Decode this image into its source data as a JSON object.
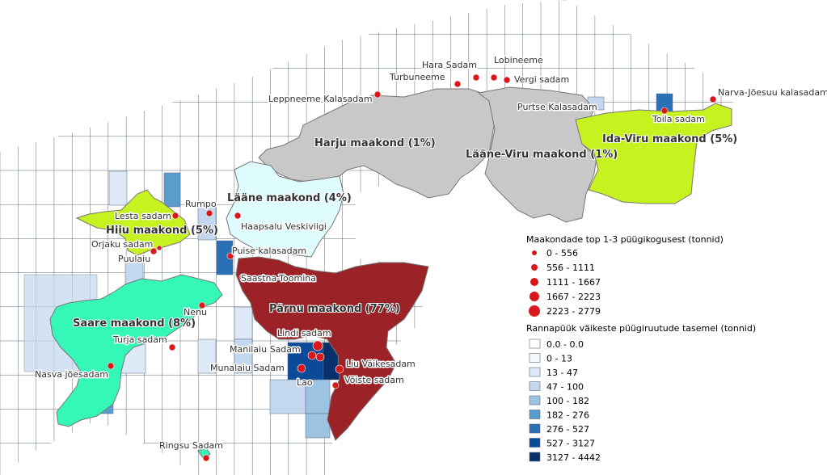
{
  "colors": {
    "sea_line": "#5a6a7a",
    "harju_fill": "#c8c8c8",
    "laane_viru_fill": "#c8c8c8",
    "ida_viru_fill": "#c6f21f",
    "hiiu_fill": "#c6f21f",
    "laane_fill": "#dffcff",
    "saare_fill": "#35f7b7",
    "parnu_fill": "#9b2226",
    "harbor_dot": "#d7191c",
    "county_border": "#777777"
  },
  "counties": [
    {
      "id": "harju",
      "label": "Harju maakond (1%)"
    },
    {
      "id": "laane-viru",
      "label": "Lääne-Viru maakond (1%)"
    },
    {
      "id": "ida-viru",
      "label": "Ida-Viru maakond (5%)"
    },
    {
      "id": "laane",
      "label": "Lääne maakond (4%)"
    },
    {
      "id": "hiiu",
      "label": "Hiiu maakond (5%)"
    },
    {
      "id": "saare",
      "label": "Saare maakond (8%)"
    },
    {
      "id": "parnu",
      "label": "Pärnu maakond (77%)"
    }
  ],
  "harbors": [
    {
      "name": "Hara Sadam",
      "size_class": 0
    },
    {
      "name": "Lobineeme",
      "size_class": 0
    },
    {
      "name": "Turbuneeme",
      "size_class": 0
    },
    {
      "name": "Vergi sadam",
      "size_class": 0
    },
    {
      "name": "Leppneeme Kalasadam",
      "size_class": 0
    },
    {
      "name": "Narva-Jõesuu kalasadam",
      "size_class": 0
    },
    {
      "name": "Purtse Kalasadam",
      "size_class": 0
    },
    {
      "name": "Toila sadam",
      "size_class": 0
    },
    {
      "name": "Rumpo",
      "size_class": 0
    },
    {
      "name": "Lesta sadam",
      "size_class": 0
    },
    {
      "name": "Haapsalu Veskiviigi",
      "size_class": 0
    },
    {
      "name": "Orjaku sadam",
      "size_class": 0
    },
    {
      "name": "Puulaiu",
      "size_class": 0
    },
    {
      "name": "Puise kalasadam",
      "size_class": 0
    },
    {
      "name": "Saastna-Toomina",
      "size_class": 0
    },
    {
      "name": "Nenu",
      "size_class": 0
    },
    {
      "name": "Turja sadam",
      "size_class": 0
    },
    {
      "name": "Nasva jõesadam",
      "size_class": 0
    },
    {
      "name": "Lindi sadam",
      "size_class": 2
    },
    {
      "name": "Manilaiu Sadam",
      "size_class": 1
    },
    {
      "name": "Munalaiu Sadam",
      "size_class": 1
    },
    {
      "name": "Liu Väikesadam",
      "size_class": 1
    },
    {
      "name": "Lao",
      "size_class": 1
    },
    {
      "name": "Võiste sadam",
      "size_class": 0
    },
    {
      "name": "Ringsu Sadam",
      "size_class": 0
    }
  ],
  "legend": {
    "harbor_title": "Maakondade top 1-3 püügikogusest (tonnid)",
    "harbor_classes": [
      "0 - 556",
      "556 - 1111",
      "1111 - 1667",
      "1667 - 2223",
      "2223 - 2779"
    ],
    "grid_title": "Rannapüük väikeste püügiruutude tasemel (tonnid)",
    "grid_classes": [
      {
        "label": "0.0 - 0.0",
        "color": "#ffffff"
      },
      {
        "label": "0 - 13",
        "color": "#f4f8fd"
      },
      {
        "label": "13 - 47",
        "color": "#dde9f6"
      },
      {
        "label": "47 - 100",
        "color": "#c3d8ee"
      },
      {
        "label": "100 - 182",
        "color": "#9cc3e2"
      },
      {
        "label": "182 - 276",
        "color": "#5b9ccf"
      },
      {
        "label": "276 - 527",
        "color": "#2a70b5"
      },
      {
        "label": "527 - 3127",
        "color": "#0b4a99"
      },
      {
        "label": "3127 - 4442",
        "color": "#08306b"
      }
    ]
  }
}
